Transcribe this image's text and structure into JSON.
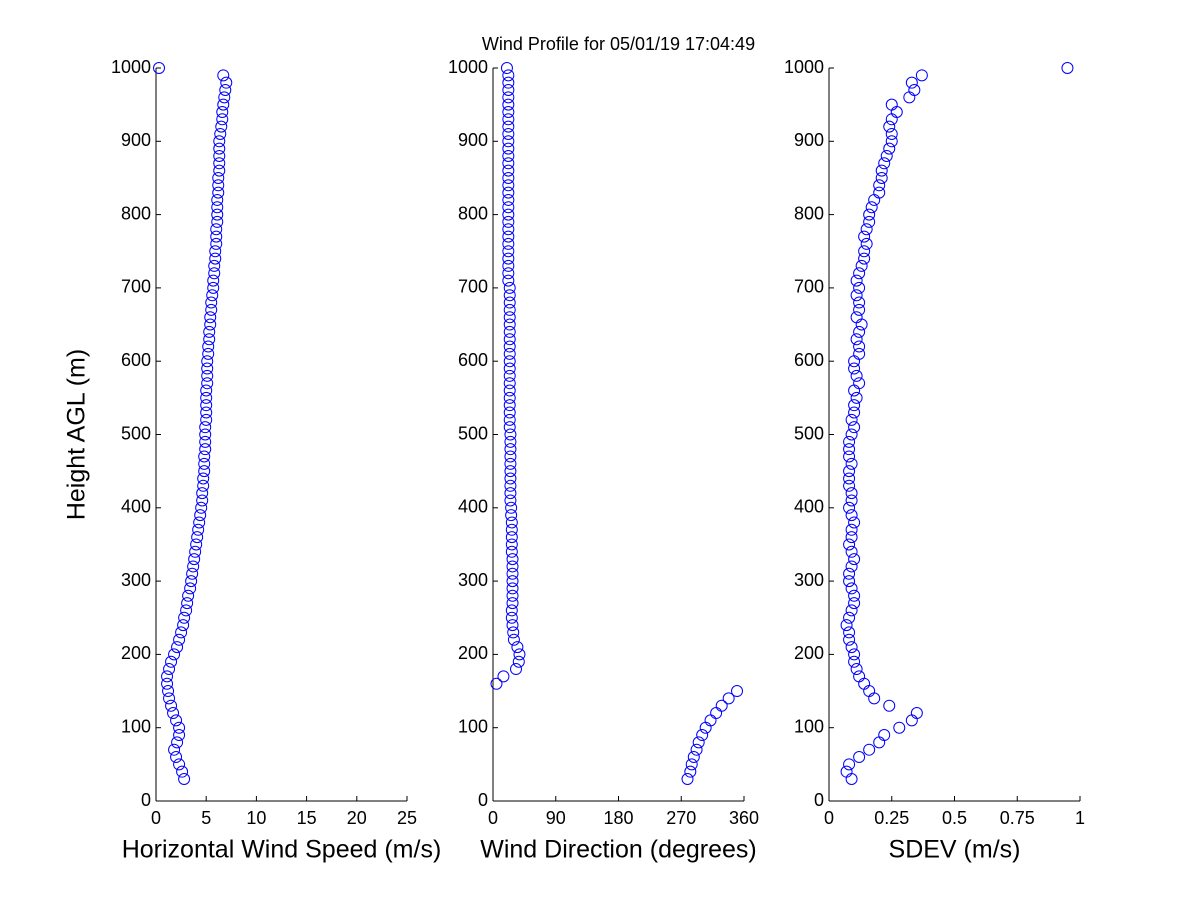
{
  "chart_data": [
    {
      "type": "scatter",
      "x_label": "Horizontal Wind Speed (m/s)",
      "y_label": "Height AGL (m)",
      "color": "#0000ff",
      "xlim": [
        0,
        25
      ],
      "xticks": [
        0,
        5,
        10,
        15,
        20,
        25
      ],
      "ylim": [
        0,
        1000
      ],
      "yticks": [
        0,
        100,
        200,
        300,
        400,
        500,
        600,
        700,
        800,
        900,
        1000
      ],
      "x": [
        2.8,
        2.6,
        2.3,
        2.0,
        1.8,
        2.1,
        2.3,
        2.3,
        2.0,
        1.7,
        1.5,
        1.3,
        1.2,
        1.1,
        1.1,
        1.3,
        1.5,
        1.8,
        2.1,
        2.3,
        2.5,
        2.7,
        2.8,
        3.0,
        3.1,
        3.2,
        3.4,
        3.5,
        3.6,
        3.7,
        3.8,
        3.9,
        4.0,
        4.1,
        4.2,
        4.3,
        4.4,
        4.5,
        4.6,
        4.6,
        4.7,
        4.7,
        4.8,
        4.8,
        4.8,
        4.9,
        4.9,
        4.9,
        4.9,
        5.0,
        5.0,
        5.0,
        5.0,
        5.0,
        5.1,
        5.1,
        5.1,
        5.1,
        5.2,
        5.2,
        5.3,
        5.3,
        5.4,
        5.4,
        5.5,
        5.5,
        5.6,
        5.7,
        5.7,
        5.8,
        5.8,
        5.9,
        5.9,
        6.0,
        6.0,
        6.0,
        6.1,
        6.1,
        6.1,
        6.1,
        6.2,
        6.2,
        6.2,
        6.3,
        6.3,
        6.3,
        6.3,
        6.3,
        6.4,
        6.5,
        6.6,
        6.6,
        6.7,
        6.8,
        6.9,
        7.0,
        6.7,
        0.3
      ],
      "values": [
        30,
        40,
        50,
        60,
        70,
        80,
        90,
        100,
        110,
        120,
        130,
        140,
        150,
        160,
        170,
        180,
        190,
        200,
        210,
        220,
        230,
        240,
        250,
        260,
        270,
        280,
        290,
        300,
        310,
        320,
        330,
        340,
        350,
        360,
        370,
        380,
        390,
        400,
        410,
        420,
        430,
        440,
        450,
        460,
        470,
        480,
        490,
        500,
        510,
        520,
        530,
        540,
        550,
        560,
        570,
        580,
        590,
        600,
        610,
        620,
        630,
        640,
        650,
        660,
        670,
        680,
        690,
        700,
        710,
        720,
        730,
        740,
        750,
        760,
        770,
        780,
        790,
        800,
        810,
        820,
        830,
        840,
        850,
        860,
        870,
        880,
        890,
        900,
        910,
        920,
        930,
        940,
        950,
        960,
        970,
        980,
        990,
        1000
      ]
    },
    {
      "type": "scatter",
      "title": "Wind Profile for  05/01/19 17:04:49",
      "x_label": "Wind Direction (degrees)",
      "color": "#0000ff",
      "xlim": [
        0,
        360
      ],
      "xticks": [
        0,
        90,
        180,
        270,
        360
      ],
      "ylim": [
        0,
        1000
      ],
      "yticks": [
        0,
        100,
        200,
        300,
        400,
        500,
        600,
        700,
        800,
        900,
        1000
      ],
      "x": [
        279,
        283,
        285,
        288,
        292,
        295,
        300,
        305,
        312,
        320,
        328,
        338,
        350,
        5,
        15,
        33,
        37,
        38,
        35,
        30,
        29,
        28,
        27,
        27,
        28,
        28,
        28,
        28,
        28,
        28,
        28,
        27,
        27,
        27,
        27,
        27,
        26,
        26,
        25,
        25,
        25,
        25,
        25,
        25,
        25,
        25,
        25,
        25,
        24,
        24,
        24,
        24,
        24,
        24,
        24,
        24,
        24,
        24,
        24,
        24,
        24,
        24,
        24,
        24,
        24,
        24,
        24,
        24,
        22,
        22,
        22,
        22,
        22,
        22,
        22,
        22,
        22,
        22,
        22,
        22,
        22,
        22,
        22,
        22,
        22,
        22,
        22,
        22,
        22,
        22,
        22,
        22,
        22,
        22,
        22,
        22,
        22,
        20
      ],
      "values": [
        30,
        40,
        50,
        60,
        70,
        80,
        90,
        100,
        110,
        120,
        130,
        140,
        150,
        160,
        170,
        180,
        190,
        200,
        210,
        220,
        230,
        240,
        250,
        260,
        270,
        280,
        290,
        300,
        310,
        320,
        330,
        340,
        350,
        360,
        370,
        380,
        390,
        400,
        410,
        420,
        430,
        440,
        450,
        460,
        470,
        480,
        490,
        500,
        510,
        520,
        530,
        540,
        550,
        560,
        570,
        580,
        590,
        600,
        610,
        620,
        630,
        640,
        650,
        660,
        670,
        680,
        690,
        700,
        710,
        720,
        730,
        740,
        750,
        760,
        770,
        780,
        790,
        800,
        810,
        820,
        830,
        840,
        850,
        860,
        870,
        880,
        890,
        900,
        910,
        920,
        930,
        940,
        950,
        960,
        970,
        980,
        990,
        1000
      ]
    },
    {
      "type": "scatter",
      "x_label": "SDEV  (m/s)",
      "color": "#0000ff",
      "xlim": [
        0,
        1
      ],
      "xticks": [
        0,
        0.25,
        0.5,
        0.75,
        1
      ],
      "ylim": [
        0,
        1000
      ],
      "yticks": [
        0,
        100,
        200,
        300,
        400,
        500,
        600,
        700,
        800,
        900,
        1000
      ],
      "x": [
        0.09,
        0.07,
        0.08,
        0.12,
        0.16,
        0.2,
        0.22,
        0.28,
        0.33,
        0.35,
        0.24,
        0.18,
        0.16,
        0.14,
        0.12,
        0.11,
        0.1,
        0.1,
        0.09,
        0.08,
        0.08,
        0.07,
        0.08,
        0.09,
        0.1,
        0.1,
        0.09,
        0.08,
        0.08,
        0.09,
        0.1,
        0.09,
        0.08,
        0.09,
        0.09,
        0.1,
        0.09,
        0.08,
        0.09,
        0.09,
        0.08,
        0.08,
        0.08,
        0.09,
        0.08,
        0.08,
        0.08,
        0.09,
        0.1,
        0.09,
        0.1,
        0.1,
        0.11,
        0.1,
        0.12,
        0.11,
        0.1,
        0.1,
        0.12,
        0.12,
        0.11,
        0.12,
        0.13,
        0.11,
        0.12,
        0.12,
        0.11,
        0.12,
        0.11,
        0.12,
        0.13,
        0.14,
        0.14,
        0.15,
        0.14,
        0.15,
        0.16,
        0.16,
        0.17,
        0.18,
        0.2,
        0.2,
        0.21,
        0.21,
        0.22,
        0.23,
        0.24,
        0.25,
        0.25,
        0.24,
        0.25,
        0.27,
        0.25,
        0.32,
        0.34,
        0.33,
        0.37,
        0.95
      ],
      "values": [
        30,
        40,
        50,
        60,
        70,
        80,
        90,
        100,
        110,
        120,
        130,
        140,
        150,
        160,
        170,
        180,
        190,
        200,
        210,
        220,
        230,
        240,
        250,
        260,
        270,
        280,
        290,
        300,
        310,
        320,
        330,
        340,
        350,
        360,
        370,
        380,
        390,
        400,
        410,
        420,
        430,
        440,
        450,
        460,
        470,
        480,
        490,
        500,
        510,
        520,
        530,
        540,
        550,
        560,
        570,
        580,
        590,
        600,
        610,
        620,
        630,
        640,
        650,
        660,
        670,
        680,
        690,
        700,
        710,
        720,
        730,
        740,
        750,
        760,
        770,
        780,
        790,
        800,
        810,
        820,
        830,
        840,
        850,
        860,
        870,
        880,
        890,
        900,
        910,
        920,
        930,
        940,
        950,
        960,
        970,
        980,
        990,
        1000
      ]
    }
  ]
}
